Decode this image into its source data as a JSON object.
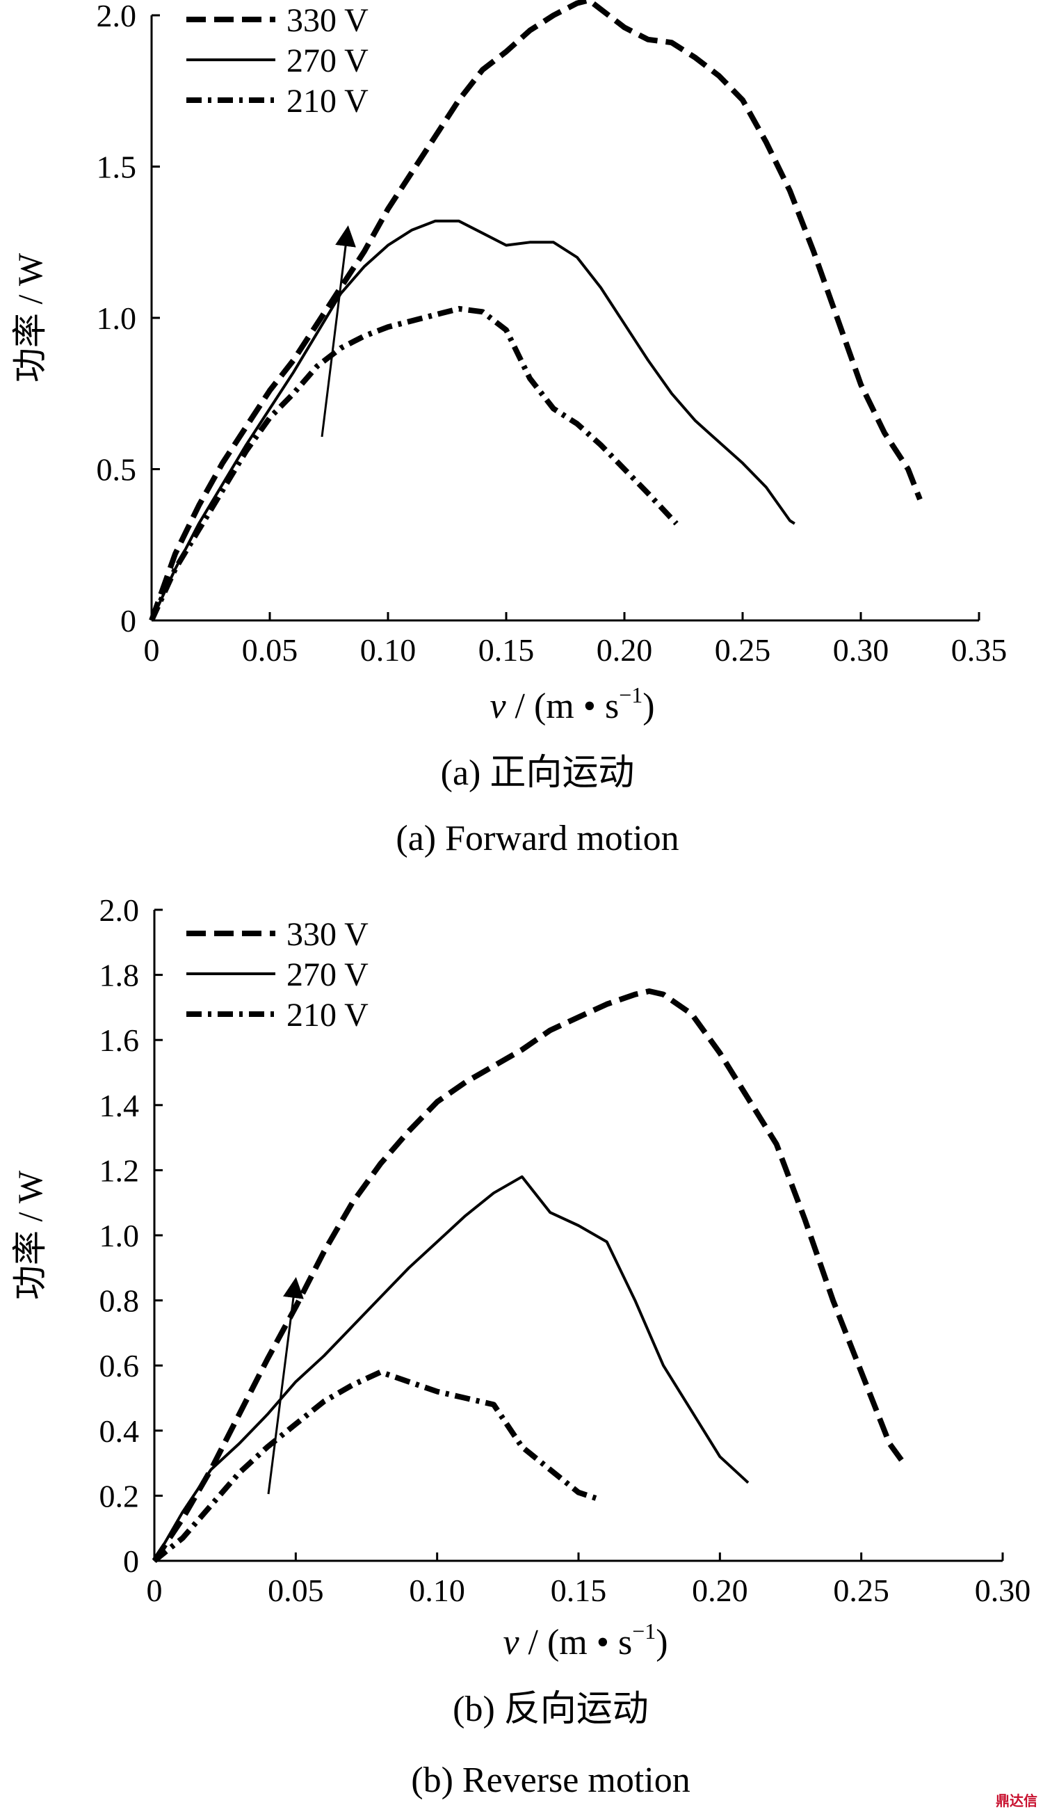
{
  "chart_data": [
    {
      "type": "line",
      "panel_label": "(a)",
      "caption_cn": "(a) 正向运动",
      "caption_en": "(a) Forward motion",
      "ylabel": "功率 / W",
      "xlabel_parts": [
        "v",
        " / (m • s",
        "−1",
        ")"
      ],
      "xlim": [
        0,
        0.35
      ],
      "ylim": [
        0,
        2.0
      ],
      "xticks": [
        0,
        0.05,
        0.1,
        0.15,
        0.2,
        0.25,
        0.3,
        0.35
      ],
      "xtick_labels": [
        "0",
        "0.05",
        "0.10",
        "0.15",
        "0.20",
        "0.25",
        "0.30",
        "0.35"
      ],
      "yticks": [
        0,
        0.5,
        1.0,
        1.5,
        2.0
      ],
      "ytick_labels": [
        "0",
        "0.5",
        "1.0",
        "1.5",
        "2.0"
      ],
      "legend_position": "top-left",
      "series": [
        {
          "name": "330 V",
          "style": "dashed",
          "x": [
            0,
            0.01,
            0.02,
            0.03,
            0.04,
            0.05,
            0.06,
            0.07,
            0.08,
            0.09,
            0.1,
            0.11,
            0.12,
            0.13,
            0.14,
            0.15,
            0.16,
            0.17,
            0.18,
            0.185,
            0.19,
            0.2,
            0.21,
            0.22,
            0.23,
            0.24,
            0.25,
            0.26,
            0.27,
            0.28,
            0.29,
            0.3,
            0.31,
            0.32,
            0.325
          ],
          "y": [
            0,
            0.22,
            0.38,
            0.52,
            0.64,
            0.76,
            0.86,
            0.98,
            1.1,
            1.22,
            1.36,
            1.48,
            1.6,
            1.72,
            1.82,
            1.88,
            1.95,
            2.0,
            2.04,
            2.05,
            2.02,
            1.96,
            1.92,
            1.91,
            1.86,
            1.8,
            1.72,
            1.58,
            1.42,
            1.22,
            1.0,
            0.78,
            0.62,
            0.5,
            0.4
          ]
        },
        {
          "name": "270 V",
          "style": "solid",
          "x": [
            0,
            0.01,
            0.02,
            0.03,
            0.04,
            0.05,
            0.06,
            0.07,
            0.08,
            0.09,
            0.1,
            0.11,
            0.12,
            0.13,
            0.14,
            0.15,
            0.16,
            0.17,
            0.18,
            0.19,
            0.2,
            0.21,
            0.22,
            0.23,
            0.24,
            0.25,
            0.26,
            0.27,
            0.272
          ],
          "y": [
            0,
            0.17,
            0.32,
            0.45,
            0.58,
            0.7,
            0.82,
            0.95,
            1.08,
            1.17,
            1.24,
            1.29,
            1.32,
            1.32,
            1.28,
            1.24,
            1.25,
            1.25,
            1.2,
            1.1,
            0.98,
            0.86,
            0.75,
            0.66,
            0.59,
            0.52,
            0.44,
            0.33,
            0.32
          ]
        },
        {
          "name": "210 V",
          "style": "dashdot",
          "x": [
            0,
            0.01,
            0.02,
            0.03,
            0.04,
            0.05,
            0.06,
            0.07,
            0.08,
            0.09,
            0.1,
            0.11,
            0.12,
            0.13,
            0.14,
            0.15,
            0.16,
            0.17,
            0.18,
            0.19,
            0.2,
            0.21,
            0.222
          ],
          "y": [
            0,
            0.17,
            0.3,
            0.43,
            0.56,
            0.67,
            0.75,
            0.84,
            0.9,
            0.94,
            0.97,
            0.99,
            1.01,
            1.03,
            1.02,
            0.96,
            0.8,
            0.7,
            0.65,
            0.58,
            0.5,
            0.42,
            0.32
          ]
        }
      ]
    },
    {
      "type": "line",
      "panel_label": "(b)",
      "caption_cn": "(b) 反向运动",
      "caption_en": "(b) Reverse motion",
      "ylabel": "功率 / W",
      "xlabel_parts": [
        "v",
        " / (m • s",
        "−1",
        ")"
      ],
      "xlim": [
        0,
        0.3
      ],
      "ylim": [
        0,
        2.0
      ],
      "xticks": [
        0,
        0.05,
        0.1,
        0.15,
        0.2,
        0.25,
        0.3
      ],
      "xtick_labels": [
        "0",
        "0.05",
        "0.10",
        "0.15",
        "0.20",
        "0.25",
        "0.30"
      ],
      "yticks": [
        0,
        0.2,
        0.4,
        0.6,
        0.8,
        1.0,
        1.2,
        1.4,
        1.6,
        1.8,
        2.0
      ],
      "ytick_labels": [
        "0",
        "0.2",
        "0.4",
        "0.6",
        "0.8",
        "1.0",
        "1.2",
        "1.4",
        "1.6",
        "1.8",
        "2.0"
      ],
      "legend_position": "top-left",
      "series": [
        {
          "name": "330 V",
          "style": "dashed",
          "x": [
            0,
            0.01,
            0.02,
            0.03,
            0.04,
            0.05,
            0.06,
            0.07,
            0.08,
            0.09,
            0.1,
            0.11,
            0.12,
            0.13,
            0.14,
            0.15,
            0.16,
            0.17,
            0.175,
            0.18,
            0.19,
            0.2,
            0.21,
            0.22,
            0.23,
            0.24,
            0.25,
            0.26,
            0.265
          ],
          "y": [
            0,
            0.13,
            0.28,
            0.45,
            0.62,
            0.78,
            0.95,
            1.1,
            1.22,
            1.32,
            1.41,
            1.47,
            1.52,
            1.57,
            1.63,
            1.67,
            1.71,
            1.74,
            1.75,
            1.74,
            1.68,
            1.56,
            1.42,
            1.28,
            1.05,
            0.8,
            0.58,
            0.36,
            0.3
          ]
        },
        {
          "name": "270 V",
          "style": "solid",
          "x": [
            0,
            0.01,
            0.02,
            0.03,
            0.04,
            0.05,
            0.06,
            0.07,
            0.08,
            0.09,
            0.1,
            0.11,
            0.12,
            0.13,
            0.14,
            0.15,
            0.16,
            0.17,
            0.18,
            0.19,
            0.2,
            0.21
          ],
          "y": [
            0,
            0.15,
            0.28,
            0.36,
            0.45,
            0.55,
            0.63,
            0.72,
            0.81,
            0.9,
            0.98,
            1.06,
            1.13,
            1.18,
            1.07,
            1.03,
            0.98,
            0.8,
            0.6,
            0.46,
            0.32,
            0.24
          ]
        },
        {
          "name": "210 V",
          "style": "dashdot",
          "x": [
            0,
            0.01,
            0.02,
            0.03,
            0.04,
            0.05,
            0.06,
            0.07,
            0.08,
            0.09,
            0.1,
            0.11,
            0.12,
            0.13,
            0.14,
            0.15,
            0.157
          ],
          "y": [
            0,
            0.07,
            0.17,
            0.27,
            0.35,
            0.42,
            0.49,
            0.54,
            0.58,
            0.55,
            0.52,
            0.5,
            0.48,
            0.35,
            0.28,
            0.21,
            0.19
          ]
        }
      ]
    }
  ],
  "watermark": "鼎达信"
}
